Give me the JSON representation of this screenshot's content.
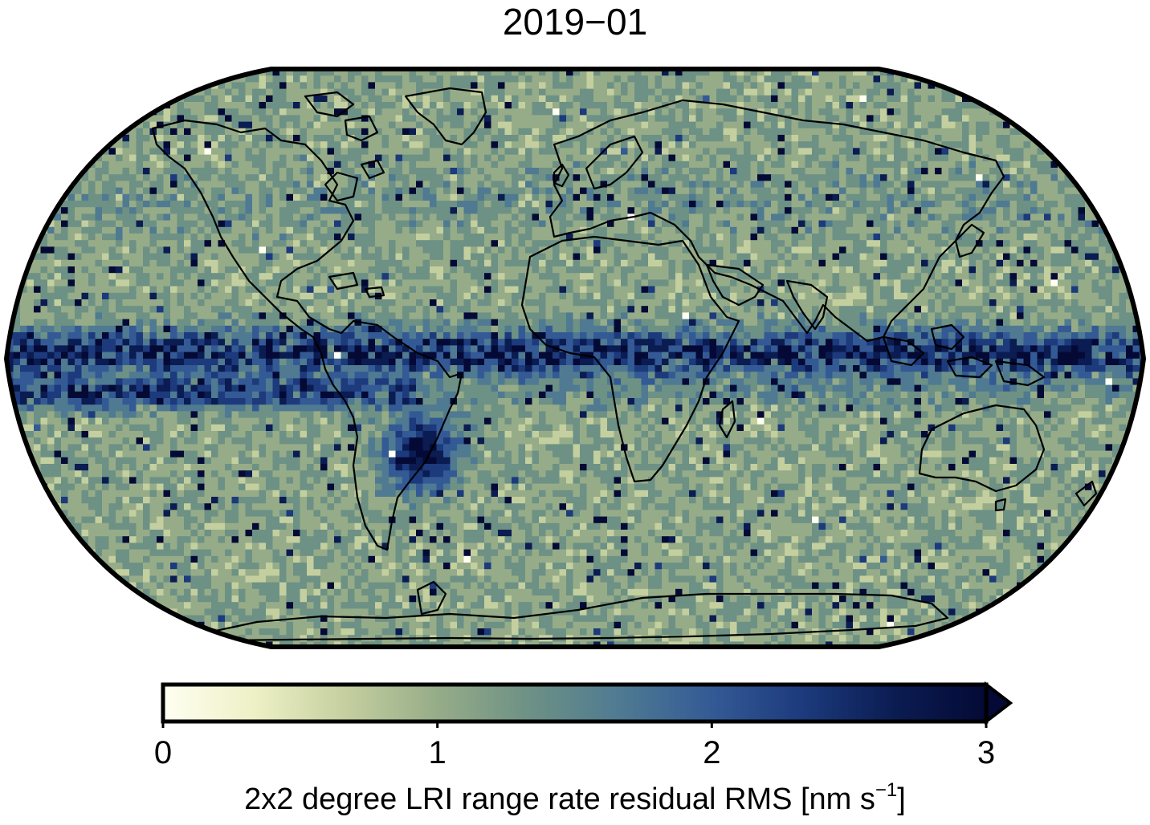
{
  "title": "2019−01",
  "map": {
    "projection": "Robinson",
    "grid_resolution": "2x2 degree",
    "field": "LRI range rate residual RMS",
    "notable_features": [
      "high values along the equatorial band (ITCZ)",
      "maximum over south-eastern South America",
      "coastlines drawn in black"
    ]
  },
  "colorbar": {
    "min": 0,
    "max": 3,
    "ticks": [
      "0",
      "1",
      "2",
      "3"
    ],
    "extend": "max",
    "label_main": "2x2 degree LRI range rate residual RMS [nm s",
    "label_exp": "−1",
    "label_end": "]",
    "colors": [
      "#fffff2",
      "#eef0c6",
      "#c4cf9f",
      "#96ac88",
      "#6d9185",
      "#4f7a92",
      "#345a95",
      "#1c3a7c",
      "#0b1c52",
      "#040a35"
    ]
  }
}
